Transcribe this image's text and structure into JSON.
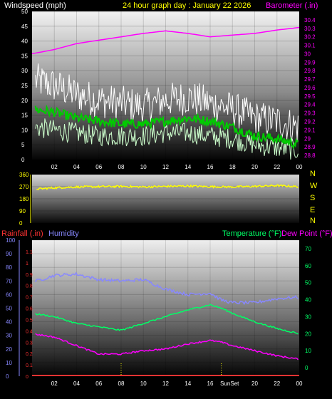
{
  "top": {
    "title": "24 hour graph day : January 22 2026",
    "left_label": "Windspeed (mph)",
    "right_label": "Barometer (.in)",
    "title_color": "#ffff00",
    "left_label_color": "#ffffff",
    "right_label_color": "#ff00ff"
  },
  "bottom": {
    "left_label_1": "Rainfall (.in)",
    "left_label_2": "Humidity",
    "right_label_1": "Temperature (°F)",
    "right_label_2": "Dew Point (°F)",
    "rain_color": "#ff3333",
    "humidity_color": "#8888ff",
    "temp_color": "#00ff66",
    "dew_color": "#ff00ff",
    "sun_label": "SunSet"
  },
  "chart_data": [
    {
      "type": "line",
      "name": "wind-barometer",
      "x_ticks": [
        "02",
        "04",
        "06",
        "08",
        "10",
        "12",
        "14",
        "16",
        "18",
        "20",
        "22",
        "00"
      ],
      "ylim_left": [
        0,
        50
      ],
      "yticks_left": [
        0,
        5,
        10,
        15,
        20,
        25,
        30,
        35,
        40,
        45,
        50
      ],
      "ylim_right": [
        28.75,
        30.5
      ],
      "yticks_right": [
        "28.8",
        "28.9",
        "29",
        "29.1",
        "29.2",
        "29.3",
        "29.4",
        "29.5",
        "29.6",
        "29.7",
        "29.8",
        "29.9",
        "30",
        "30.1",
        "30.2",
        "30.3",
        "30.4"
      ],
      "hours": [
        0,
        2,
        4,
        6,
        8,
        10,
        12,
        14,
        16,
        18,
        20,
        22,
        24
      ],
      "barometer": [
        30.0,
        30.05,
        30.12,
        30.16,
        30.2,
        30.24,
        30.27,
        30.24,
        30.2,
        30.22,
        30.24,
        30.28,
        30.31
      ],
      "gust": [
        27,
        25,
        22,
        20,
        19,
        18,
        20,
        21,
        19,
        17,
        14,
        13,
        11
      ],
      "wind_avg": [
        17,
        16,
        14,
        13,
        12,
        12,
        13,
        14,
        13,
        11,
        8,
        7,
        5
      ],
      "wind_low": [
        11,
        10,
        9,
        8,
        8,
        8,
        9,
        9,
        8,
        7,
        5,
        4,
        3
      ],
      "colors": {
        "gust": "#ffffff",
        "avg": "#00cc00",
        "low": "#ccffcc",
        "barometer": "#ff00ff"
      }
    },
    {
      "type": "line",
      "name": "wind-direction",
      "ylim": [
        0,
        360
      ],
      "yticks": [
        0,
        90,
        180,
        270,
        360
      ],
      "compass_labels": [
        "N",
        "W",
        "S",
        "E",
        "N"
      ],
      "hours": [
        0,
        2,
        4,
        6,
        8,
        10,
        12,
        14,
        16,
        18,
        20,
        22,
        24
      ],
      "direction": [
        250,
        262,
        268,
        270,
        272,
        268,
        272,
        275,
        270,
        268,
        272,
        278,
        270
      ],
      "color": "#ffff00"
    },
    {
      "type": "line",
      "name": "humidity-temperature",
      "ylim_left_rain": [
        0,
        1.2
      ],
      "yticks_left_rain": [
        "0",
        "0.1",
        "0.2",
        "0.3",
        "0.4",
        "0.5",
        "0.6",
        "0.7",
        "0.8",
        "0.9",
        "1",
        "1.1"
      ],
      "ylim_left_humidity": [
        0,
        100
      ],
      "yticks_left_humidity": [
        0,
        10,
        20,
        30,
        40,
        50,
        60,
        70,
        80,
        90,
        100
      ],
      "ylim_right": [
        -5,
        75
      ],
      "yticks_right": [
        0,
        10,
        20,
        30,
        40,
        50,
        60,
        70
      ],
      "x_ticks": [
        "02",
        "04",
        "06",
        "08",
        "10",
        "12",
        "14",
        "16",
        "SunSet",
        "20",
        "22",
        "00"
      ],
      "hours": [
        0,
        2,
        4,
        6,
        8,
        10,
        12,
        14,
        16,
        17,
        18,
        20,
        22,
        24
      ],
      "humidity": [
        69,
        74,
        75,
        71,
        70,
        71,
        64,
        60,
        61,
        56,
        54,
        54,
        57,
        58
      ],
      "temperature": [
        32,
        30,
        26,
        24,
        22,
        26,
        30,
        34,
        37,
        35,
        32,
        27,
        23,
        20
      ],
      "dew_point": [
        20,
        18,
        13,
        8,
        8,
        10,
        11,
        14,
        16,
        15,
        13,
        10,
        7,
        5
      ],
      "rainfall": [
        0,
        0,
        0,
        0,
        0,
        0,
        0,
        0,
        0,
        0,
        0,
        0,
        0,
        0
      ]
    }
  ]
}
